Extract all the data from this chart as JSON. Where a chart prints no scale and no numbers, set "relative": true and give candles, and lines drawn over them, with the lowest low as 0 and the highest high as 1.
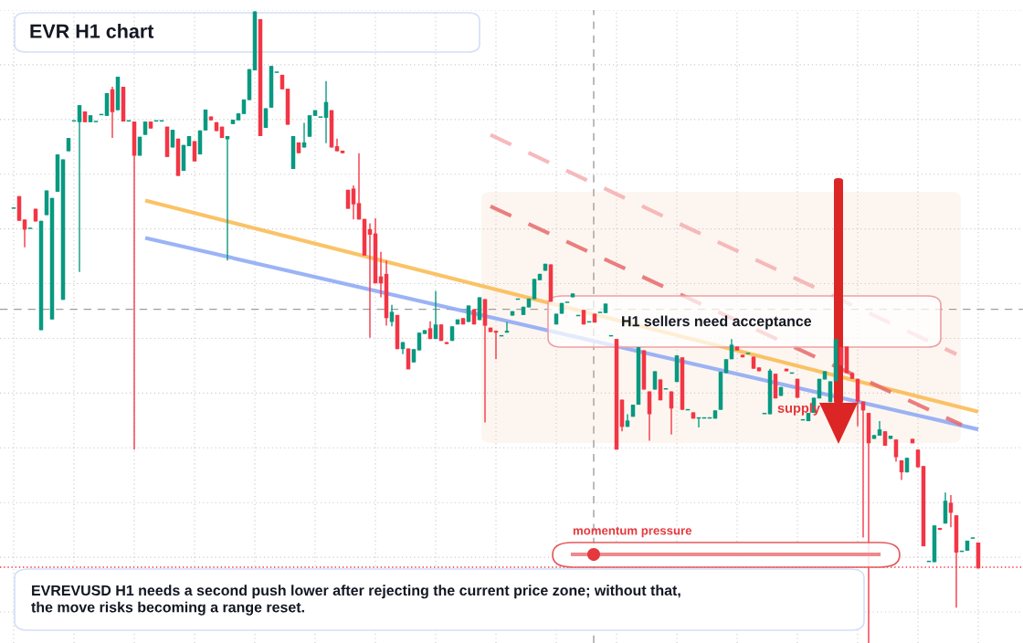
{
  "chart_data": {
    "type": "candlestick",
    "title": "EVR H1 chart",
    "relative": true,
    "tick_labels": false,
    "grid": true,
    "categories": [
      null,
      null,
      null,
      null,
      null,
      null,
      null,
      null,
      null,
      null,
      null,
      null,
      null,
      null,
      null,
      null,
      null,
      null,
      null,
      null,
      null,
      null,
      null,
      null,
      null,
      null,
      null,
      null,
      null,
      null,
      null,
      null,
      null,
      null,
      null,
      null,
      null,
      null,
      null,
      null,
      null,
      null,
      null,
      null,
      null,
      null,
      null,
      null,
      null,
      null,
      null,
      null,
      null,
      null,
      null,
      null,
      null,
      null,
      null,
      null,
      null,
      null,
      null,
      null,
      null,
      null,
      null,
      null,
      null,
      null,
      null,
      null,
      null,
      null,
      null,
      null,
      null,
      null,
      null,
      null,
      null,
      null,
      null,
      null,
      null,
      null,
      null,
      null,
      null,
      null,
      null,
      null,
      null,
      null,
      null,
      null,
      null,
      null,
      null,
      null,
      null,
      null,
      null,
      null,
      null,
      null,
      null,
      null,
      null,
      null,
      null,
      null,
      null,
      null,
      null,
      null,
      null,
      null,
      null,
      null,
      null,
      null,
      null,
      null,
      null,
      null,
      null,
      null,
      null,
      null,
      null,
      null,
      null,
      null,
      null,
      null,
      null,
      null,
      null,
      null,
      null,
      null,
      null,
      null,
      null,
      null,
      null,
      null,
      null,
      null,
      null,
      null,
      null,
      null,
      null,
      null,
      null,
      null,
      null,
      null,
      null,
      null,
      null,
      null,
      null,
      null,
      null,
      null,
      null,
      null,
      null,
      null,
      null,
      null,
      null,
      null,
      null
    ],
    "colors": [
      "#089981",
      "#f23645",
      "#f23645",
      "#089981",
      "#f23645",
      "#089981",
      "#089981",
      "#089981",
      "#089981",
      "#089981",
      "#089981",
      "#089981",
      "#089981",
      "#f23645",
      "#089981",
      "#089981",
      "#089981",
      "#089981",
      "#f23645",
      "#089981",
      "#f23645",
      "#089981",
      "#f23645",
      "#089981",
      "#089981",
      "#f23645",
      "#089981",
      "#089981",
      "#f23645",
      "#089981",
      "#f23645",
      "#089981",
      "#089981",
      "#f23645",
      "#089981",
      "#089981",
      "#f23645",
      "#f23645",
      "#f23645",
      "#089981",
      "#089981",
      "#089981",
      "#089981",
      "#089981",
      "#089981",
      "#f23645",
      "#089981",
      "#089981",
      "#089981",
      "#f23645",
      "#f23645",
      "#089981",
      "#f23645",
      "#089981",
      "#089981",
      "#089981",
      "#089981",
      "#089981",
      "#f23645",
      "#f23645",
      "#f23645",
      "#f23645",
      "#f23645",
      "#f23645",
      "#f23645",
      "#f23645",
      "#f23645",
      "#f23645",
      "#f23645",
      "#089981",
      "#f23645",
      "#089981",
      "#f23645",
      "#089981",
      "#089981",
      "#089981",
      "#f23645",
      "#089981",
      "#f23645",
      "#f23645",
      "#089981",
      "#089981",
      "#f23645",
      "#089981",
      "#f23645",
      "#089981",
      "#f23645",
      "#f23645",
      "#f23645",
      "#089981",
      "#089981",
      "#089981",
      "#089981",
      "#089981",
      "#089981",
      "#089981",
      "#089981",
      "#089981",
      "#f23645",
      "#089981",
      "#089981",
      "#089981",
      "#089981",
      "#089981",
      "#f23645",
      "#089981",
      "#f23645",
      "#089981",
      "#089981",
      "#089981",
      "#f23645",
      "#f23645",
      "#089981",
      "#089981",
      "#089981",
      "#f23645",
      "#f23645",
      "#089981",
      "#f23645",
      "#089981",
      "#f23645",
      "#089981",
      "#f23645",
      "#089981",
      "#f23645",
      "#089981",
      "#089981",
      "#089981",
      "#089981",
      "#089981",
      "#089981",
      "#089981",
      "#f23645",
      "#f23645",
      "#089981",
      "#f23645",
      "#f23645",
      "#089981",
      "#089981",
      "#f23645",
      "#089981",
      "#f23645",
      "#089981",
      "#f23645",
      "#089981",
      "#089981",
      "#089981",
      "#089981",
      "#089981",
      "#089981",
      "#089981",
      "#f23645",
      "#f23645",
      "#f23645",
      "#f23645",
      "#f23645",
      "#f23645",
      "#089981",
      "#089981",
      "#f23645",
      "#089981",
      "#f23645",
      "#f23645",
      "#089981",
      "#f23645",
      "#f23645",
      "#f23645",
      "#089981",
      "#089981",
      "#f23645",
      "#089981",
      "#f23645",
      "#f23645",
      "#089981",
      "#089981",
      "#089981",
      "#f23645"
    ],
    "ohlc": [
      [
        0.687,
        0.687,
        0.687,
        0.687
      ],
      [
        0.707,
        0.707,
        0.668,
        0.668
      ],
      [
        0.67,
        0.67,
        0.626,
        0.654
      ],
      [
        0.655,
        0.655,
        0.655,
        0.655
      ],
      [
        0.687,
        0.687,
        0.667,
        0.667
      ],
      [
        0.495,
        0.668,
        0.495,
        0.668
      ],
      [
        0.677,
        0.716,
        0.677,
        0.716
      ],
      [
        0.512,
        0.704,
        0.512,
        0.704
      ],
      [
        0.714,
        0.773,
        0.714,
        0.773
      ],
      [
        0.543,
        0.765,
        0.543,
        0.765
      ],
      [
        0.778,
        0.799,
        0.778,
        0.799
      ],
      [
        0.825,
        0.825,
        0.825,
        0.825
      ],
      [
        0.824,
        0.851,
        0.587,
        0.851
      ],
      [
        0.841,
        0.841,
        0.824,
        0.824
      ],
      [
        0.824,
        0.835,
        0.824,
        0.835
      ],
      [
        0.824,
        0.824,
        0.824,
        0.824
      ],
      [
        0.835,
        0.835,
        0.835,
        0.835
      ],
      [
        0.834,
        0.87,
        0.834,
        0.87
      ],
      [
        0.876,
        0.88,
        0.799,
        0.84
      ],
      [
        0.843,
        0.896,
        0.843,
        0.896
      ],
      [
        0.88,
        0.88,
        0.825,
        0.825
      ],
      [
        0.825,
        0.825,
        0.825,
        0.825
      ],
      [
        0.825,
        0.825,
        0.306,
        0.771
      ],
      [
        0.771,
        0.801,
        0.771,
        0.801
      ],
      [
        0.804,
        0.825,
        0.804,
        0.825
      ],
      [
        0.825,
        0.825,
        0.814,
        0.814
      ],
      [
        0.825,
        0.825,
        0.825,
        0.825
      ],
      [
        0.825,
        0.825,
        0.825,
        0.825
      ],
      [
        0.817,
        0.817,
        0.769,
        0.769
      ],
      [
        0.784,
        0.812,
        0.784,
        0.812
      ],
      [
        0.798,
        0.798,
        0.739,
        0.739
      ],
      [
        0.747,
        0.788,
        0.747,
        0.788
      ],
      [
        0.786,
        0.802,
        0.786,
        0.802
      ],
      [
        0.794,
        0.794,
        0.762,
        0.762
      ],
      [
        0.773,
        0.811,
        0.773,
        0.811
      ],
      [
        0.811,
        0.844,
        0.811,
        0.844
      ],
      [
        0.833,
        0.833,
        0.827,
        0.827
      ],
      [
        0.824,
        0.824,
        0.81,
        0.81
      ],
      [
        0.817,
        0.817,
        0.799,
        0.799
      ],
      [
        0.797,
        0.802,
        0.605,
        0.802
      ],
      [
        0.821,
        0.828,
        0.821,
        0.828
      ],
      [
        0.827,
        0.838,
        0.827,
        0.838
      ],
      [
        0.837,
        0.86,
        0.837,
        0.86
      ],
      [
        0.859,
        0.908,
        0.859,
        0.908
      ],
      [
        0.906,
        1.0,
        0.906,
        0.999
      ],
      [
        0.987,
        0.987,
        0.802,
        0.802
      ],
      [
        0.815,
        0.846,
        0.815,
        0.846
      ],
      [
        0.847,
        0.913,
        0.847,
        0.913
      ],
      [
        0.902,
        0.902,
        0.902,
        0.902
      ],
      [
        0.899,
        0.899,
        0.876,
        0.876
      ],
      [
        0.877,
        0.877,
        0.82,
        0.82
      ],
      [
        0.75,
        0.802,
        0.75,
        0.802
      ],
      [
        0.792,
        0.792,
        0.775,
        0.775
      ],
      [
        0.784,
        0.823,
        0.784,
        0.792
      ],
      [
        0.801,
        0.835,
        0.801,
        0.835
      ],
      [
        0.834,
        0.843,
        0.834,
        0.843
      ],
      [
        0.831,
        0.831,
        0.831,
        0.831
      ],
      [
        0.831,
        0.889,
        0.791,
        0.856
      ],
      [
        0.843,
        0.843,
        0.784,
        0.784
      ],
      [
        0.786,
        0.798,
        0.778,
        0.778
      ],
      [
        0.779,
        0.779,
        0.775,
        0.775
      ],
      [
        0.717,
        0.717,
        0.687,
        0.687
      ],
      [
        0.719,
        0.724,
        0.67,
        0.694
      ],
      [
        0.696,
        0.775,
        0.67,
        0.67
      ],
      [
        0.671,
        0.671,
        0.613,
        0.613
      ],
      [
        0.655,
        0.664,
        0.483,
        0.646
      ],
      [
        0.648,
        0.672,
        0.569,
        0.569
      ],
      [
        0.58,
        0.619,
        0.547,
        0.569
      ],
      [
        0.584,
        0.605,
        0.502,
        0.514
      ],
      [
        0.508,
        0.535,
        0.501,
        0.524
      ],
      [
        0.519,
        0.519,
        0.465,
        0.465
      ],
      [
        0.465,
        0.476,
        0.457,
        0.476
      ],
      [
        0.466,
        0.466,
        0.433,
        0.433
      ],
      [
        0.444,
        0.465,
        0.444,
        0.465
      ],
      [
        0.463,
        0.491,
        0.463,
        0.491
      ],
      [
        0.489,
        0.495,
        0.489,
        0.495
      ],
      [
        0.498,
        0.509,
        0.481,
        0.481
      ],
      [
        0.481,
        0.557,
        0.481,
        0.504
      ],
      [
        0.504,
        0.504,
        0.478,
        0.478
      ],
      [
        0.476,
        0.476,
        0.473,
        0.473
      ],
      [
        0.478,
        0.501,
        0.478,
        0.501
      ],
      [
        0.504,
        0.512,
        0.504,
        0.512
      ],
      [
        0.514,
        0.514,
        0.504,
        0.504
      ],
      [
        0.508,
        0.534,
        0.508,
        0.534
      ],
      [
        0.528,
        0.528,
        0.504,
        0.504
      ],
      [
        0.511,
        0.547,
        0.511,
        0.547
      ],
      [
        0.544,
        0.544,
        0.349,
        0.502
      ],
      [
        0.499,
        0.499,
        0.492,
        0.492
      ],
      [
        0.494,
        0.494,
        0.449,
        0.491
      ],
      [
        0.485,
        0.485,
        0.485,
        0.485
      ],
      [
        0.491,
        0.508,
        0.491,
        0.494
      ],
      [
        0.518,
        0.525,
        0.518,
        0.525
      ],
      [
        0.543,
        0.543,
        0.543,
        0.543
      ],
      [
        0.519,
        0.532,
        0.519,
        0.532
      ],
      [
        0.531,
        0.545,
        0.531,
        0.545
      ],
      [
        0.544,
        0.576,
        0.544,
        0.576
      ],
      [
        0.574,
        0.584,
        0.574,
        0.584
      ],
      [
        0.589,
        0.6,
        0.589,
        0.6
      ],
      [
        0.599,
        0.599,
        0.54,
        0.54
      ],
      [
        0.504,
        0.521,
        0.504,
        0.521
      ],
      [
        0.521,
        0.538,
        0.521,
        0.538
      ],
      [
        0.538,
        0.538,
        0.538,
        0.538
      ],
      [
        0.547,
        0.553,
        0.547,
        0.553
      ],
      [
        0.517,
        0.517,
        0.517,
        0.517
      ],
      [
        0.527,
        0.527,
        0.504,
        0.504
      ],
      [
        0.507,
        0.507,
        0.507,
        0.507
      ],
      [
        0.521,
        0.521,
        0.507,
        0.507
      ],
      [
        0.522,
        0.522,
        0.522,
        0.522
      ],
      [
        0.522,
        0.537,
        0.522,
        0.537
      ],
      [
        0.485,
        0.485,
        0.485,
        0.485
      ],
      [
        0.481,
        0.481,
        0.306,
        0.306
      ],
      [
        0.385,
        0.385,
        0.335,
        0.342
      ],
      [
        0.342,
        0.362,
        0.342,
        0.352
      ],
      [
        0.358,
        0.377,
        0.358,
        0.377
      ],
      [
        0.377,
        0.468,
        0.377,
        0.468
      ],
      [
        0.463,
        0.463,
        0.401,
        0.401
      ],
      [
        0.398,
        0.398,
        0.32,
        0.362
      ],
      [
        0.401,
        0.43,
        0.401,
        0.43
      ],
      [
        0.417,
        0.417,
        0.384,
        0.384
      ],
      [
        0.401,
        0.401,
        0.401,
        0.401
      ],
      [
        0.398,
        0.398,
        0.33,
        0.371
      ],
      [
        0.413,
        0.455,
        0.413,
        0.455
      ],
      [
        0.452,
        0.452,
        0.369,
        0.369
      ],
      [
        0.368,
        0.368,
        0.368,
        0.368
      ],
      [
        0.365,
        0.365,
        0.355,
        0.355
      ],
      [
        0.355,
        0.355,
        0.341,
        0.355
      ],
      [
        0.355,
        0.355,
        0.355,
        0.355
      ],
      [
        0.355,
        0.355,
        0.355,
        0.355
      ],
      [
        0.355,
        0.368,
        0.355,
        0.368
      ],
      [
        0.369,
        0.429,
        0.369,
        0.429
      ],
      [
        0.427,
        0.449,
        0.427,
        0.449
      ],
      [
        0.449,
        0.481,
        0.449,
        0.472
      ],
      [
        0.469,
        0.469,
        0.463,
        0.463
      ],
      [
        0.456,
        0.456,
        0.452,
        0.452
      ],
      [
        0.457,
        0.457,
        0.457,
        0.457
      ],
      [
        0.453,
        0.453,
        0.434,
        0.434
      ],
      [
        0.436,
        0.436,
        0.43,
        0.43
      ],
      [
        0.362,
        0.362,
        0.362,
        0.362
      ],
      [
        0.362,
        0.434,
        0.362,
        0.431
      ],
      [
        0.426,
        0.426,
        0.387,
        0.387
      ],
      [
        0.391,
        0.405,
        0.391,
        0.405
      ],
      [
        0.434,
        0.434,
        0.43,
        0.43
      ],
      [
        0.426,
        0.426,
        0.426,
        0.426
      ],
      [
        0.418,
        0.418,
        0.388,
        0.388
      ],
      [
        0.352,
        0.352,
        0.352,
        0.352
      ],
      [
        0.351,
        0.364,
        0.351,
        0.364
      ],
      [
        0.364,
        0.388,
        0.364,
        0.388
      ],
      [
        0.387,
        0.418,
        0.387,
        0.418
      ],
      [
        0.417,
        0.43,
        0.417,
        0.43
      ],
      [
        0.381,
        0.414,
        0.381,
        0.414
      ],
      [
        0.414,
        0.481,
        0.414,
        0.481
      ],
      [
        0.468,
        0.468,
        0.439,
        0.439
      ],
      [
        0.469,
        0.469,
        0.427,
        0.427
      ],
      [
        0.427,
        0.427,
        0.418,
        0.418
      ],
      [
        0.418,
        0.418,
        0.343,
        0.382
      ],
      [
        0.382,
        0.382,
        0.167,
        0.368
      ],
      [
        0.364,
        0.364,
        0.0,
        0.316
      ],
      [
        0.323,
        0.329,
        0.323,
        0.329
      ],
      [
        0.328,
        0.351,
        0.328,
        0.338
      ],
      [
        0.335,
        0.335,
        0.312,
        0.312
      ],
      [
        0.323,
        0.328,
        0.323,
        0.328
      ],
      [
        0.322,
        0.322,
        0.287,
        0.294
      ],
      [
        0.289,
        0.289,
        0.258,
        0.27
      ],
      [
        0.27,
        0.293,
        0.27,
        0.293
      ],
      [
        0.323,
        0.323,
        0.316,
        0.316
      ],
      [
        0.306,
        0.306,
        0.278,
        0.278
      ],
      [
        0.28,
        0.28,
        0.153,
        0.153
      ],
      [
        0.128,
        0.128,
        0.128,
        0.128
      ],
      [
        0.128,
        0.186,
        0.128,
        0.186
      ],
      [
        0.182,
        0.182,
        0.179,
        0.179
      ],
      [
        0.189,
        0.238,
        0.189,
        0.225
      ],
      [
        0.222,
        0.234,
        0.183,
        0.206
      ],
      [
        0.202,
        0.202,
        0.056,
        0.143
      ],
      [
        0.144,
        0.144,
        0.144,
        0.144
      ],
      [
        0.146,
        0.162,
        0.146,
        0.162
      ],
      [
        0.165,
        0.166,
        0.165,
        0.166
      ],
      [
        0.159,
        0.159,
        0.118,
        0.118
      ]
    ],
    "series": [
      {
        "type": "line",
        "color": "#f9b84e",
        "values": [
          null,
          null,
          null,
          null,
          null,
          null,
          null,
          null,
          null,
          null,
          null,
          null,
          null,
          null,
          null,
          null,
          null,
          null,
          null,
          null,
          null,
          null,
          null,
          null,
          0.7,
          null,
          null,
          null,
          null,
          null,
          null,
          null,
          null,
          null,
          null,
          null,
          null,
          null,
          null,
          null,
          null,
          null,
          null,
          null,
          null,
          null,
          null,
          null,
          null,
          null,
          null,
          null,
          null,
          null,
          null,
          null,
          null,
          null,
          null,
          null,
          null,
          null,
          null,
          null,
          null,
          null,
          null,
          null,
          null,
          null,
          null,
          null,
          null,
          null,
          null,
          null,
          null,
          null,
          null,
          null,
          null,
          null,
          null,
          null,
          null,
          null,
          null,
          null,
          null,
          null,
          null,
          null,
          null,
          null,
          null,
          null,
          null,
          null,
          null,
          null,
          null,
          null,
          null,
          null,
          null,
          null,
          null,
          null,
          null,
          null,
          null,
          null,
          null,
          null,
          null,
          null,
          null,
          null,
          null,
          null,
          null,
          null,
          null,
          null,
          null,
          null,
          null,
          null,
          null,
          null,
          null,
          null,
          null,
          null,
          null,
          null,
          null,
          null,
          null,
          null,
          null,
          null,
          null,
          null,
          null,
          null,
          null,
          null,
          null,
          null,
          null,
          null,
          null,
          null,
          null,
          null,
          null,
          null,
          null,
          null,
          null,
          null,
          null,
          null,
          null,
          null,
          null,
          null,
          null,
          null,
          null,
          null,
          null,
          null,
          null,
          null,
          0.366
        ]
      },
      {
        "type": "line",
        "color": "#8aa6f4",
        "values": [
          null,
          null,
          null,
          null,
          null,
          null,
          null,
          null,
          null,
          null,
          null,
          null,
          null,
          null,
          null,
          null,
          null,
          null,
          null,
          null,
          null,
          null,
          null,
          null,
          0.641,
          null,
          null,
          null,
          null,
          null,
          null,
          null,
          null,
          null,
          null,
          null,
          null,
          null,
          null,
          null,
          null,
          null,
          null,
          null,
          null,
          null,
          null,
          null,
          null,
          null,
          null,
          null,
          null,
          null,
          null,
          null,
          null,
          null,
          null,
          null,
          null,
          null,
          null,
          null,
          null,
          null,
          null,
          null,
          null,
          null,
          null,
          null,
          null,
          null,
          null,
          null,
          null,
          null,
          null,
          null,
          null,
          null,
          null,
          null,
          null,
          null,
          null,
          null,
          null,
          null,
          null,
          null,
          null,
          null,
          null,
          null,
          null,
          null,
          null,
          null,
          null,
          null,
          null,
          null,
          null,
          null,
          null,
          null,
          null,
          null,
          null,
          null,
          null,
          null,
          null,
          null,
          null,
          null,
          null,
          null,
          null,
          null,
          null,
          null,
          null,
          null,
          null,
          null,
          null,
          null,
          null,
          null,
          null,
          null,
          null,
          null,
          null,
          null,
          null,
          null,
          null,
          null,
          null,
          null,
          null,
          null,
          null,
          null,
          null,
          null,
          null,
          null,
          null,
          null,
          null,
          null,
          null,
          null,
          null,
          null,
          null,
          null,
          null,
          null,
          null,
          null,
          null,
          null,
          null,
          null,
          null,
          null,
          null,
          null,
          null,
          null,
          0.338
        ]
      },
      {
        "type": "line",
        "color": "#e8686b",
        "line_style": "dashed",
        "values": [
          null,
          null,
          null,
          null,
          null,
          null,
          null,
          null,
          null,
          null,
          null,
          null,
          null,
          null,
          null,
          null,
          null,
          null,
          null,
          null,
          null,
          null,
          null,
          null,
          null,
          null,
          null,
          null,
          null,
          null,
          null,
          null,
          null,
          null,
          null,
          null,
          null,
          null,
          null,
          null,
          null,
          null,
          null,
          null,
          null,
          null,
          null,
          null,
          null,
          null,
          null,
          null,
          null,
          null,
          null,
          null,
          null,
          null,
          null,
          null,
          null,
          null,
          null,
          null,
          null,
          null,
          null,
          null,
          null,
          null,
          null,
          null,
          null,
          null,
          null,
          null,
          null,
          null,
          null,
          null,
          null,
          null,
          null,
          null,
          null,
          null,
          null,
          0.691,
          null,
          null,
          null,
          null,
          null,
          null,
          null,
          null,
          null,
          null,
          null,
          null,
          null,
          null,
          null,
          null,
          null,
          null,
          null,
          null,
          null,
          null,
          null,
          null,
          null,
          null,
          null,
          null,
          null,
          null,
          null,
          null,
          null,
          null,
          null,
          null,
          null,
          null,
          null,
          null,
          null,
          null,
          null,
          null,
          null,
          null,
          null,
          null,
          null,
          null,
          null,
          null,
          null,
          null,
          null,
          null,
          null,
          null,
          null,
          null,
          null,
          null,
          null,
          null,
          null,
          null,
          null,
          null,
          null,
          null,
          null,
          null,
          null,
          null,
          null,
          null,
          null,
          null,
          null,
          null,
          null,
          null,
          null,
          null,
          null,
          0.345,
          null,
          null,
          null
        ]
      },
      {
        "type": "line",
        "color": "#f4aeb0",
        "line_style": "dashed",
        "values": [
          null,
          null,
          null,
          null,
          null,
          null,
          null,
          null,
          null,
          null,
          null,
          null,
          null,
          null,
          null,
          null,
          null,
          null,
          null,
          null,
          null,
          null,
          null,
          null,
          null,
          null,
          null,
          null,
          null,
          null,
          null,
          null,
          null,
          null,
          null,
          null,
          null,
          null,
          null,
          null,
          null,
          null,
          null,
          null,
          null,
          null,
          null,
          null,
          null,
          null,
          null,
          null,
          null,
          null,
          null,
          null,
          null,
          null,
          null,
          null,
          null,
          null,
          null,
          null,
          null,
          null,
          null,
          null,
          null,
          null,
          null,
          null,
          null,
          null,
          null,
          null,
          null,
          null,
          null,
          null,
          null,
          null,
          null,
          null,
          null,
          null,
          null,
          0.804,
          null,
          null,
          null,
          null,
          null,
          null,
          null,
          null,
          null,
          null,
          null,
          null,
          null,
          null,
          null,
          null,
          null,
          null,
          null,
          null,
          null,
          null,
          null,
          null,
          null,
          null,
          null,
          null,
          null,
          null,
          null,
          null,
          null,
          null,
          null,
          null,
          null,
          null,
          null,
          null,
          null,
          null,
          null,
          null,
          null,
          null,
          null,
          null,
          null,
          null,
          null,
          null,
          null,
          null,
          null,
          null,
          null,
          null,
          null,
          null,
          null,
          null,
          null,
          null,
          null,
          null,
          null,
          null,
          null,
          null,
          null,
          null,
          null,
          null,
          null,
          null,
          null,
          null,
          null,
          null,
          null,
          null,
          null,
          null,
          0.457,
          null,
          null,
          null,
          null
        ]
      }
    ],
    "ref_lines": [
      {
        "axis": "y",
        "value": 0.528,
        "color": "#9e9e9e",
        "line_style": "dashed"
      },
      {
        "axis": "y",
        "value": 0.12,
        "color": "#f23645",
        "line_style": "dotted"
      }
    ],
    "annotations": [
      "H1 sellers need acceptance",
      "supply",
      "momentum pressure",
      "EVREVUSD H1 needs a second push lower after rejecting the current price zone; without that,\nthe move risks becoming a range reset."
    ]
  }
}
